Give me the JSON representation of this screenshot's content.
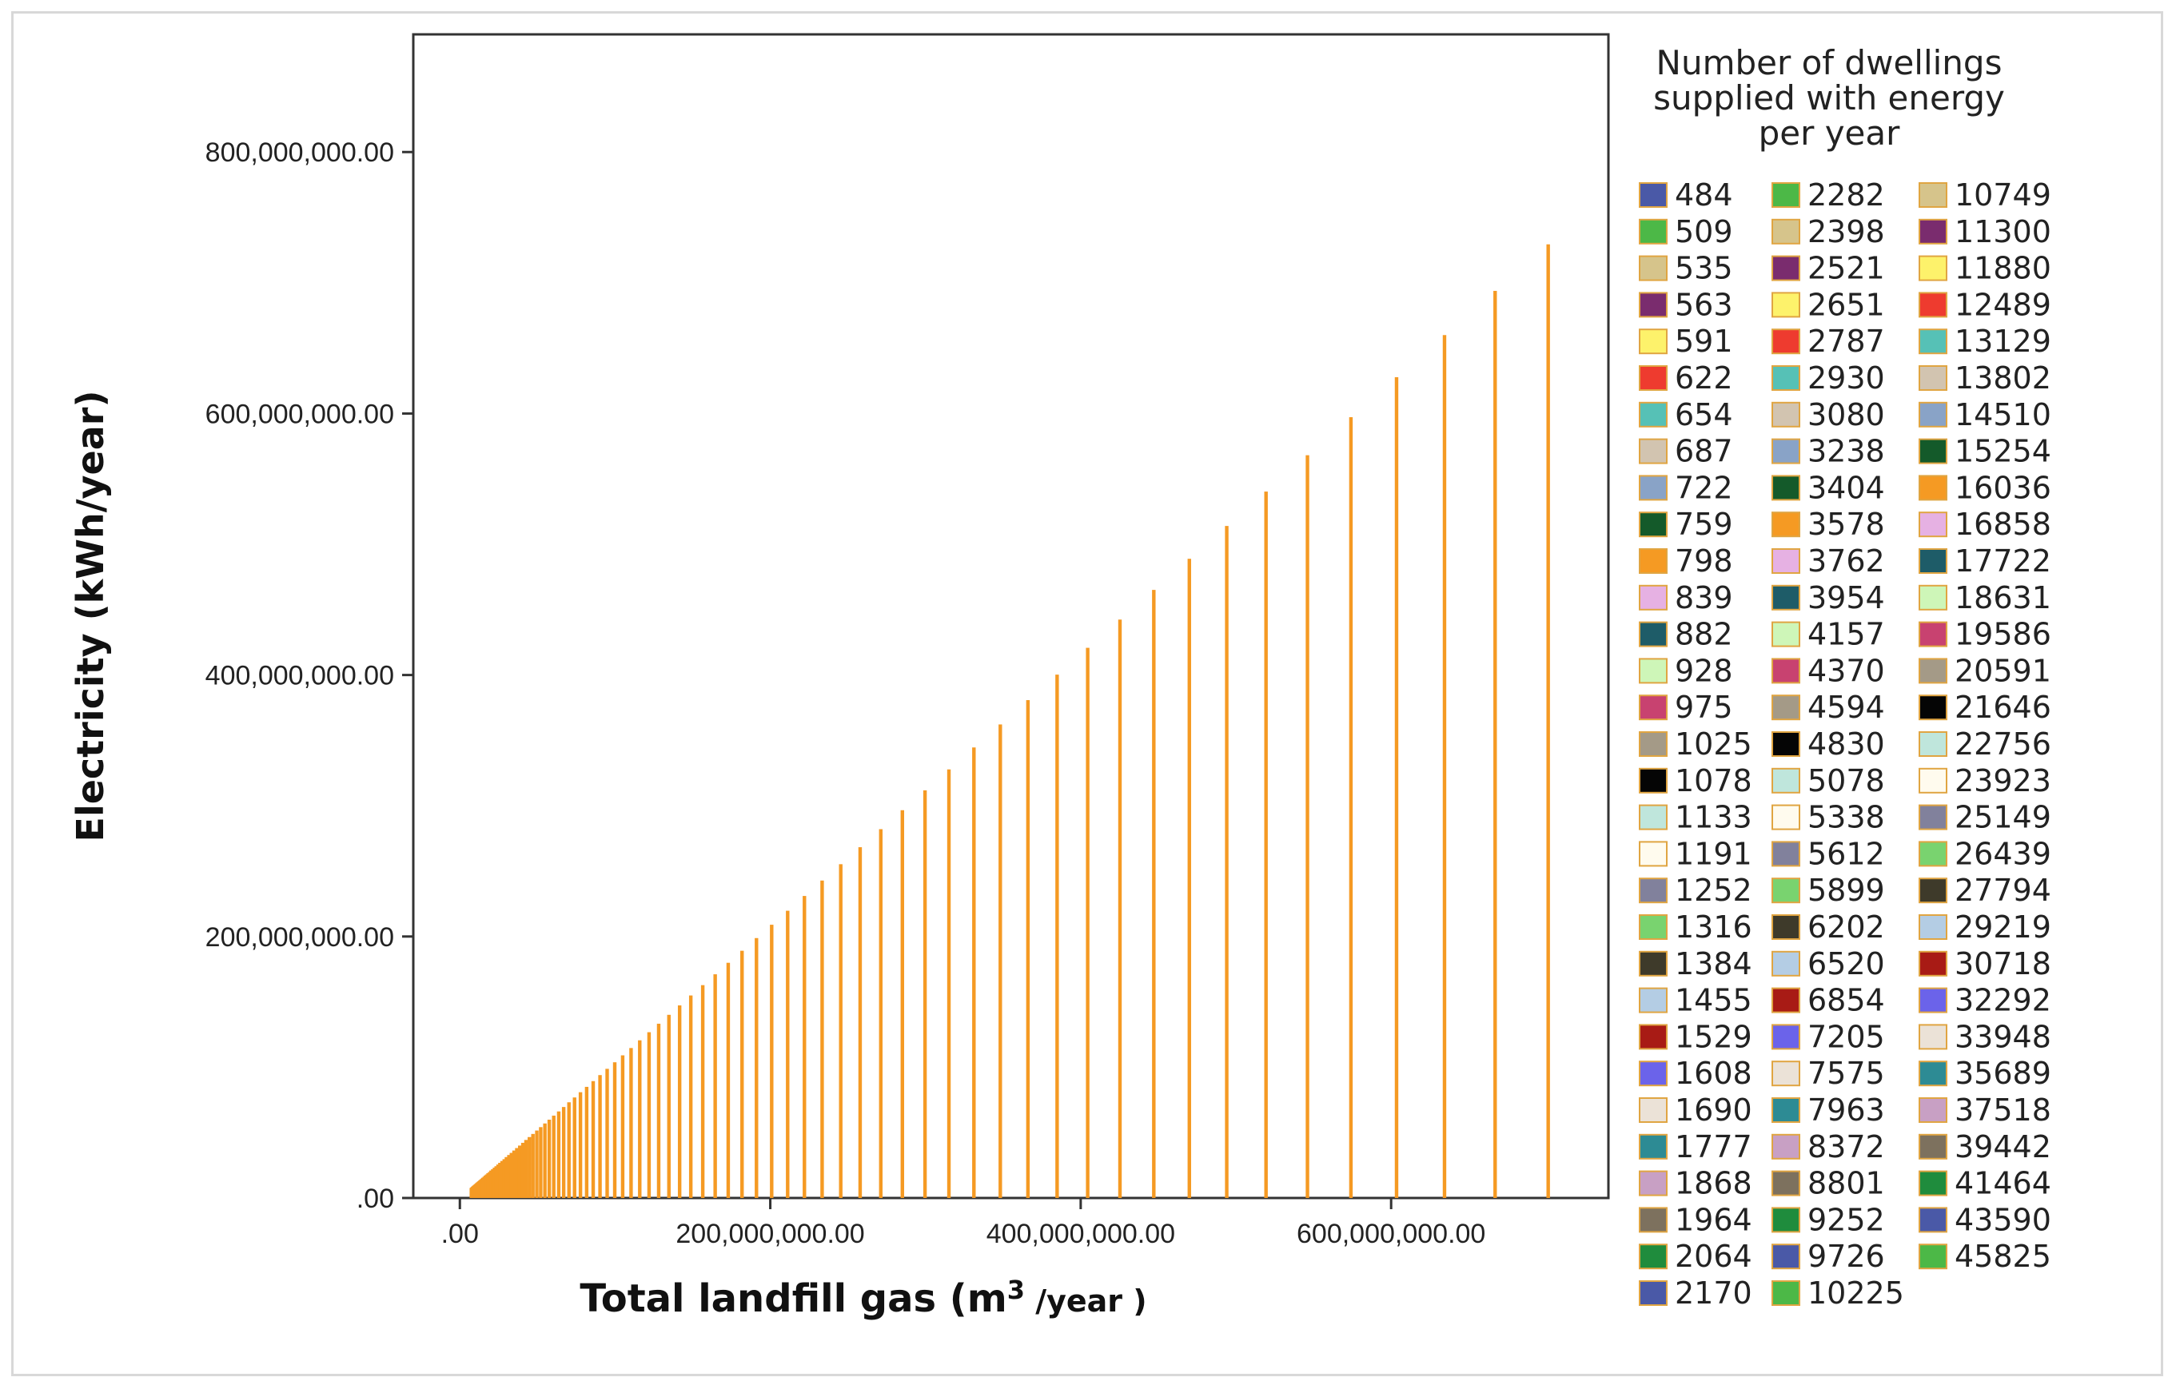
{
  "chart_data": {
    "type": "bar",
    "xlabel": "Total landfill gas (m",
    "xlabel_sup": "3",
    "xlabel_tail": " /year )",
    "ylabel": "Electricity (kWh/year)",
    "x_ticks": [
      ".00",
      "200,000,000.00",
      "400,000,000.00",
      "600,000,000.00"
    ],
    "y_ticks": [
      ".00",
      "200,000,000.00",
      "400,000,000.00",
      "600,000,000.00",
      "800,000,000.00"
    ],
    "xlim": [
      -30000000,
      740000000
    ],
    "ylim": [
      0,
      890000000
    ],
    "grid": false,
    "legend_position": "right",
    "legend_title": [
      "Number of dwellings",
      "supplied with energy",
      "per year"
    ],
    "bar_color": "#f59a23",
    "series": [
      {
        "name": "484",
        "x": 7400000,
        "y": 7700000
      },
      {
        "name": "509",
        "x": 7800000,
        "y": 8100000
      },
      {
        "name": "535",
        "x": 8200000,
        "y": 8500000
      },
      {
        "name": "563",
        "x": 8600000,
        "y": 9000000
      },
      {
        "name": "591",
        "x": 9000000,
        "y": 9400000
      },
      {
        "name": "622",
        "x": 9500000,
        "y": 9900000
      },
      {
        "name": "654",
        "x": 10000000,
        "y": 10400000
      },
      {
        "name": "687",
        "x": 10500000,
        "y": 10900000
      },
      {
        "name": "722",
        "x": 11000000,
        "y": 11500000
      },
      {
        "name": "759",
        "x": 11600000,
        "y": 12100000
      },
      {
        "name": "798",
        "x": 12200000,
        "y": 12700000
      },
      {
        "name": "839",
        "x": 12800000,
        "y": 13300000
      },
      {
        "name": "882",
        "x": 13500000,
        "y": 14000000
      },
      {
        "name": "928",
        "x": 14200000,
        "y": 14800000
      },
      {
        "name": "975",
        "x": 14900000,
        "y": 15500000
      },
      {
        "name": "1025",
        "x": 15700000,
        "y": 16300000
      },
      {
        "name": "1078",
        "x": 16500000,
        "y": 17200000
      },
      {
        "name": "1133",
        "x": 17300000,
        "y": 18000000
      },
      {
        "name": "1191",
        "x": 18200000,
        "y": 19000000
      },
      {
        "name": "1252",
        "x": 19200000,
        "y": 19900000
      },
      {
        "name": "1316",
        "x": 20100000,
        "y": 21000000
      },
      {
        "name": "1384",
        "x": 21200000,
        "y": 22000000
      },
      {
        "name": "1455",
        "x": 22300000,
        "y": 23200000
      },
      {
        "name": "1529",
        "x": 23400000,
        "y": 24300000
      },
      {
        "name": "1608",
        "x": 24600000,
        "y": 25600000
      },
      {
        "name": "1690",
        "x": 25800000,
        "y": 26900000
      },
      {
        "name": "1777",
        "x": 27200000,
        "y": 28300000
      },
      {
        "name": "1868",
        "x": 28600000,
        "y": 29700000
      },
      {
        "name": "1964",
        "x": 30000000,
        "y": 31300000
      },
      {
        "name": "2064",
        "x": 31600000,
        "y": 32900000
      },
      {
        "name": "2170",
        "x": 33200000,
        "y": 34500000
      },
      {
        "name": "2282",
        "x": 34900000,
        "y": 36300000
      },
      {
        "name": "2398",
        "x": 36700000,
        "y": 38200000
      },
      {
        "name": "2521",
        "x": 38600000,
        "y": 40100000
      },
      {
        "name": "2651",
        "x": 40600000,
        "y": 42200000
      },
      {
        "name": "2787",
        "x": 42600000,
        "y": 44400000
      },
      {
        "name": "2930",
        "x": 44800000,
        "y": 46600000
      },
      {
        "name": "3080",
        "x": 47100000,
        "y": 49000000
      },
      {
        "name": "3238",
        "x": 49600000,
        "y": 51600000
      },
      {
        "name": "3404",
        "x": 52100000,
        "y": 54200000
      },
      {
        "name": "3578",
        "x": 54800000,
        "y": 57000000
      },
      {
        "name": "3762",
        "x": 57600000,
        "y": 59900000
      },
      {
        "name": "3954",
        "x": 60500000,
        "y": 63000000
      },
      {
        "name": "4157",
        "x": 63700000,
        "y": 66200000
      },
      {
        "name": "4370",
        "x": 66900000,
        "y": 69600000
      },
      {
        "name": "4594",
        "x": 70300000,
        "y": 73200000
      },
      {
        "name": "4830",
        "x": 73900000,
        "y": 76900000
      },
      {
        "name": "5078",
        "x": 77700000,
        "y": 80900000
      },
      {
        "name": "5338",
        "x": 81700000,
        "y": 85000000
      },
      {
        "name": "5612",
        "x": 85900000,
        "y": 89400000
      },
      {
        "name": "5899",
        "x": 90300000,
        "y": 94000000
      },
      {
        "name": "6202",
        "x": 94900000,
        "y": 98800000
      },
      {
        "name": "6520",
        "x": 99800000,
        "y": 103800000
      },
      {
        "name": "6854",
        "x": 104900000,
        "y": 109100000
      },
      {
        "name": "7205",
        "x": 110300000,
        "y": 114700000
      },
      {
        "name": "7575",
        "x": 115900000,
        "y": 120600000
      },
      {
        "name": "7963",
        "x": 121900000,
        "y": 126800000
      },
      {
        "name": "8372",
        "x": 128100000,
        "y": 133300000
      },
      {
        "name": "8801",
        "x": 134700000,
        "y": 140100000
      },
      {
        "name": "9252",
        "x": 141600000,
        "y": 147300000
      },
      {
        "name": "9726",
        "x": 148800000,
        "y": 154900000
      },
      {
        "name": "10225",
        "x": 156500000,
        "y": 162800000
      },
      {
        "name": "10749",
        "x": 164500000,
        "y": 171100000
      },
      {
        "name": "11300",
        "x": 172900000,
        "y": 179900000
      },
      {
        "name": "11880",
        "x": 181800000,
        "y": 189100000
      },
      {
        "name": "12489",
        "x": 191100000,
        "y": 198800000
      },
      {
        "name": "13129",
        "x": 200900000,
        "y": 209000000
      },
      {
        "name": "13802",
        "x": 211200000,
        "y": 219700000
      },
      {
        "name": "14510",
        "x": 222000000,
        "y": 231000000
      },
      {
        "name": "15254",
        "x": 233400000,
        "y": 242800000
      },
      {
        "name": "16036",
        "x": 245400000,
        "y": 255300000
      },
      {
        "name": "16858",
        "x": 257900000,
        "y": 268300000
      },
      {
        "name": "17722",
        "x": 271200000,
        "y": 282100000
      },
      {
        "name": "18631",
        "x": 285100000,
        "y": 296600000
      },
      {
        "name": "19586",
        "x": 299700000,
        "y": 311800000
      },
      {
        "name": "20591",
        "x": 315100000,
        "y": 327800000
      },
      {
        "name": "21646",
        "x": 331200000,
        "y": 344600000
      },
      {
        "name": "22756",
        "x": 348200000,
        "y": 362200000
      },
      {
        "name": "23923",
        "x": 366000000,
        "y": 380800000
      },
      {
        "name": "25149",
        "x": 384800000,
        "y": 400300000
      },
      {
        "name": "26439",
        "x": 404500000,
        "y": 420800000
      },
      {
        "name": "27794",
        "x": 425300000,
        "y": 442400000
      },
      {
        "name": "29219",
        "x": 447100000,
        "y": 465100000
      },
      {
        "name": "30718",
        "x": 470000000,
        "y": 488900000
      },
      {
        "name": "32292",
        "x": 494100000,
        "y": 514000000
      },
      {
        "name": "33948",
        "x": 519400000,
        "y": 540300000
      },
      {
        "name": "35689",
        "x": 546100000,
        "y": 568100000
      },
      {
        "name": "37518",
        "x": 574100000,
        "y": 597200000
      },
      {
        "name": "39442",
        "x": 603500000,
        "y": 627800000
      },
      {
        "name": "41464",
        "x": 634400000,
        "y": 660000000
      },
      {
        "name": "43590",
        "x": 667000000,
        "y": 693800000
      },
      {
        "name": "45825",
        "x": 701200000,
        "y": 729400000
      }
    ],
    "legend_colors": [
      "#4a59a7",
      "#4cb847",
      "#d6c48b",
      "#7a2c6e",
      "#fdf26b",
      "#ee3b2f",
      "#56c1b6",
      "#d2c4b0",
      "#89a3c7",
      "#145a2a",
      "#f59a23",
      "#e6b1e3",
      "#1e5c68",
      "#cef6b8",
      "#c84270",
      "#a49a87",
      "#050505",
      "#bfe6dc",
      "#fffbee",
      "#81819c",
      "#79d36f",
      "#3e3a2a",
      "#b4cde4",
      "#a81b15",
      "#6b63ea",
      "#ebe2d7",
      "#2d8b94",
      "#c8a0c4",
      "#7d715e",
      "#1f8c3d"
    ]
  }
}
